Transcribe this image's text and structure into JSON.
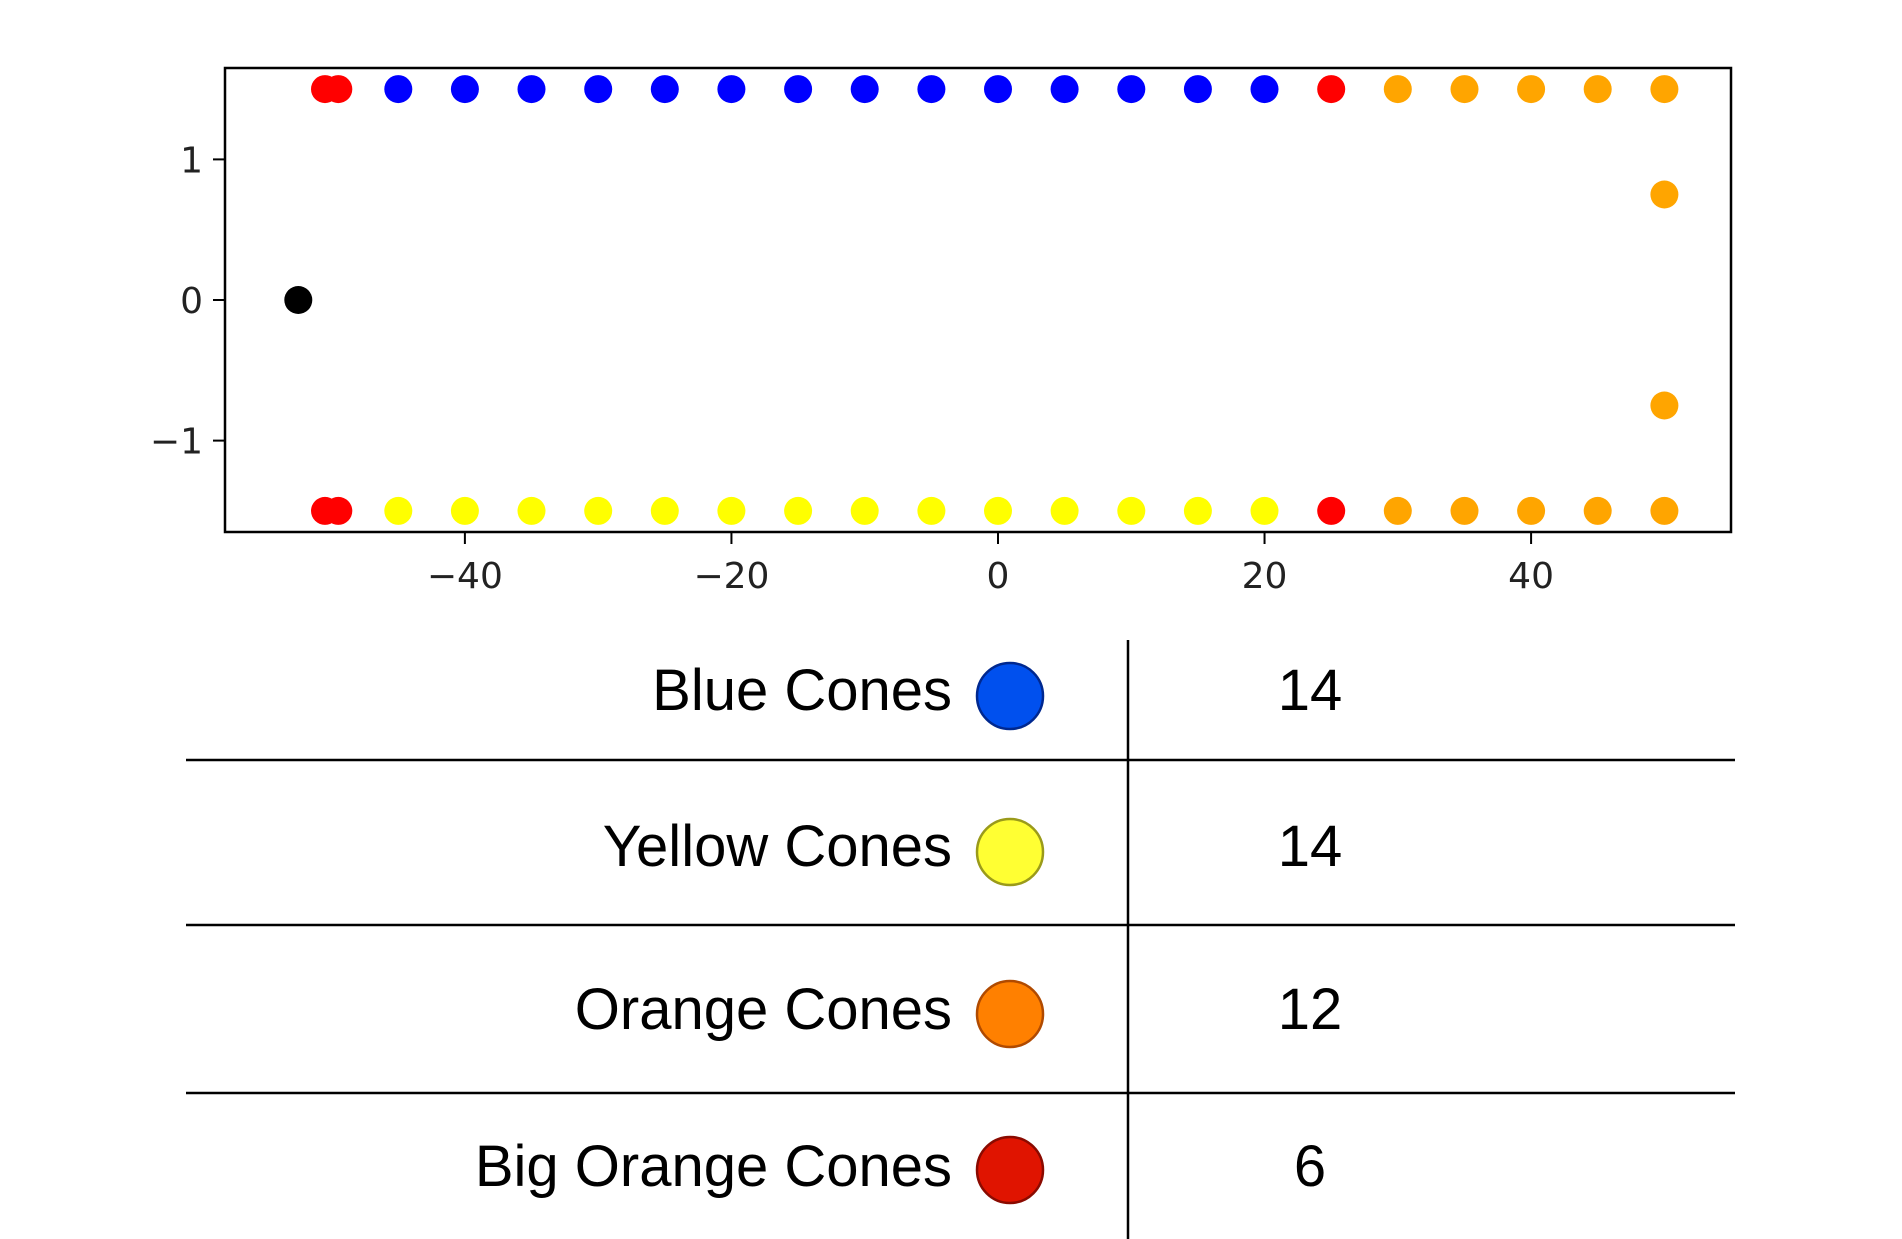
{
  "chart_data": {
    "type": "scatter",
    "title": "",
    "xlabel": "",
    "ylabel": "",
    "xlim": [
      -58,
      55
    ],
    "ylim": [
      -1.65,
      1.65
    ],
    "xticks": [
      -40,
      -20,
      0,
      20,
      40
    ],
    "xtick_labels": [
      "−40",
      "−20",
      "0",
      "20",
      "40"
    ],
    "yticks": [
      1,
      0,
      -1
    ],
    "ytick_labels": [
      "1",
      "0",
      "−1"
    ],
    "grid": false,
    "series": [
      {
        "color": "#0000ff",
        "points": [
          [
            -45,
            1.5
          ],
          [
            -40,
            1.5
          ],
          [
            -35,
            1.5
          ],
          [
            -30,
            1.5
          ],
          [
            -25,
            1.5
          ],
          [
            -20,
            1.5
          ],
          [
            -15,
            1.5
          ],
          [
            -10,
            1.5
          ],
          [
            -5,
            1.5
          ],
          [
            0,
            1.5
          ],
          [
            5,
            1.5
          ],
          [
            10,
            1.5
          ],
          [
            15,
            1.5
          ],
          [
            20,
            1.5
          ]
        ]
      },
      {
        "color": "#ffff00",
        "points": [
          [
            -45,
            -1.5
          ],
          [
            -40,
            -1.5
          ],
          [
            -35,
            -1.5
          ],
          [
            -30,
            -1.5
          ],
          [
            -25,
            -1.5
          ],
          [
            -20,
            -1.5
          ],
          [
            -15,
            -1.5
          ],
          [
            -10,
            -1.5
          ],
          [
            -5,
            -1.5
          ],
          [
            0,
            -1.5
          ],
          [
            5,
            -1.5
          ],
          [
            10,
            -1.5
          ],
          [
            15,
            -1.5
          ],
          [
            20,
            -1.5
          ]
        ]
      },
      {
        "color": "#ffa500",
        "points": [
          [
            30,
            1.5
          ],
          [
            35,
            1.5
          ],
          [
            40,
            1.5
          ],
          [
            45,
            1.5
          ],
          [
            50,
            1.5
          ],
          [
            50,
            0.75
          ],
          [
            50,
            -0.75
          ],
          [
            30,
            -1.5
          ],
          [
            35,
            -1.5
          ],
          [
            40,
            -1.5
          ],
          [
            45,
            -1.5
          ],
          [
            50,
            -1.5
          ]
        ]
      },
      {
        "color": "#ff0000",
        "points": [
          [
            -50.5,
            1.5
          ],
          [
            -49.5,
            1.5
          ],
          [
            25,
            1.5
          ],
          [
            -50.5,
            -1.5
          ],
          [
            -49.5,
            -1.5
          ],
          [
            25,
            -1.5
          ]
        ]
      },
      {
        "color": "#000000",
        "points": [
          [
            -52.5,
            0
          ]
        ]
      }
    ]
  },
  "cone_table": {
    "rows": [
      {
        "label": "Blue Cones",
        "count": "14",
        "swatch_fill": "#0050ee",
        "swatch_stroke": "#00288f"
      },
      {
        "label": "Yellow Cones",
        "count": "14",
        "swatch_fill": "#ffff33",
        "swatch_stroke": "#9a9a1a"
      },
      {
        "label": "Orange Cones",
        "count": "12",
        "swatch_fill": "#ff8000",
        "swatch_stroke": "#b04a00"
      },
      {
        "label": "Big Orange Cones",
        "count": "6",
        "swatch_fill": "#e01400",
        "swatch_stroke": "#8a0a00"
      }
    ]
  }
}
